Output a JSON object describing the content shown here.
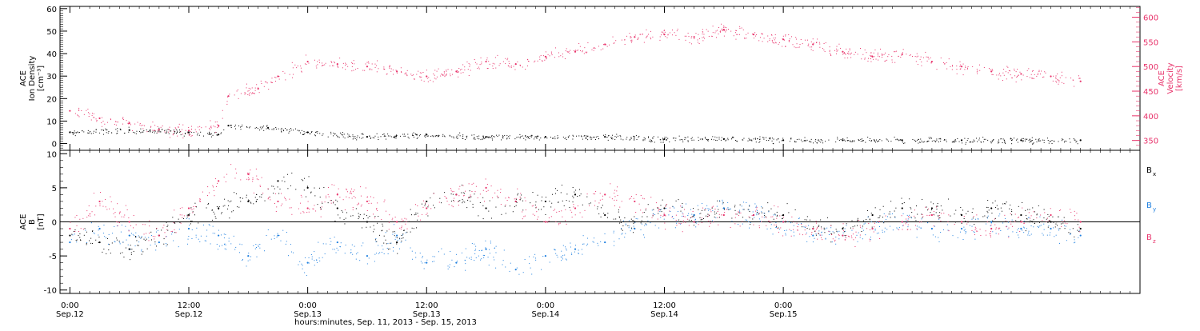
{
  "chart_data": [
    {
      "type": "scatter",
      "panel": "top",
      "left_axis": {
        "label_lines": [
          "ACE",
          "Ion Density",
          "[cm⁻³]"
        ],
        "ylim": [
          -3,
          61
        ],
        "ticks": [
          0,
          10,
          20,
          30,
          40,
          50,
          60
        ],
        "color": "#000000"
      },
      "right_axis": {
        "label_lines": [
          "ACE",
          "Velocity",
          "[km/s]"
        ],
        "ylim": [
          330,
          622
        ],
        "ticks": [
          350,
          400,
          450,
          500,
          550,
          600
        ],
        "color": "#e8336b"
      },
      "series": [
        {
          "axis": "left",
          "color": "#000000",
          "x": [
            0,
            6,
            12,
            15,
            16,
            20,
            24,
            30,
            36,
            42,
            48,
            54,
            60,
            66,
            72,
            78,
            84,
            90,
            96,
            102
          ],
          "y": [
            5,
            6,
            5,
            4,
            8,
            7,
            5,
            3,
            4,
            3,
            3,
            3,
            2,
            2,
            1.5,
            1.5,
            1.5,
            1.5,
            1.5,
            1.5
          ]
        },
        {
          "axis": "right",
          "color": "#e8336b",
          "x": [
            0,
            3,
            6,
            9,
            12,
            15,
            16,
            19,
            21,
            24,
            27,
            30,
            33,
            36,
            39,
            42,
            45,
            48,
            51,
            54,
            57,
            60,
            63,
            66,
            69,
            72,
            75,
            78,
            81,
            84,
            87,
            90,
            93,
            96,
            99,
            102
          ],
          "y": [
            410,
            395,
            385,
            372,
            370,
            380,
            440,
            455,
            480,
            510,
            505,
            500,
            490,
            480,
            490,
            510,
            505,
            520,
            530,
            545,
            560,
            565,
            560,
            575,
            565,
            555,
            545,
            530,
            520,
            525,
            510,
            500,
            490,
            485,
            480,
            470
          ]
        }
      ]
    },
    {
      "type": "scatter",
      "panel": "bottom",
      "left_axis": {
        "label_lines": [
          "ACE",
          "B",
          "[nT]"
        ],
        "ylim": [
          -10.5,
          10.5
        ],
        "ticks": [
          -10,
          -5,
          0,
          5,
          10
        ],
        "color": "#000000"
      },
      "series": [
        {
          "name": "Bx",
          "color": "#000000",
          "x": [
            0,
            3,
            6,
            9,
            12,
            15,
            18,
            21,
            24,
            27,
            30,
            33,
            36,
            39,
            42,
            45,
            48,
            51,
            54,
            57,
            60,
            63,
            66,
            69,
            72,
            75,
            78,
            81,
            84,
            87,
            90,
            93,
            96,
            99,
            102
          ],
          "y": [
            -2,
            -3,
            -4,
            -2,
            1,
            2,
            3,
            6,
            5,
            2,
            0,
            -3,
            3,
            4,
            2,
            3,
            3,
            4,
            1,
            0,
            2,
            1,
            2,
            1,
            1,
            -1,
            -1,
            1,
            2,
            2,
            1,
            2,
            1,
            0,
            -1
          ]
        },
        {
          "name": "By",
          "color": "#1f80e0",
          "x": [
            0,
            3,
            6,
            9,
            12,
            15,
            18,
            21,
            24,
            27,
            30,
            33,
            36,
            39,
            42,
            45,
            48,
            51,
            54,
            57,
            60,
            63,
            66,
            69,
            72,
            75,
            78,
            81,
            84,
            87,
            90,
            93,
            96,
            99,
            102
          ],
          "y": [
            -3,
            -1,
            -2,
            -3,
            -1,
            -2,
            -5,
            -2,
            -6,
            -3,
            -5,
            -2,
            -6,
            -6,
            -4,
            -7,
            -5,
            -4,
            -3,
            -1,
            1,
            1,
            2,
            1,
            0,
            -2,
            -2,
            -1,
            0,
            -1,
            -1,
            0,
            -1,
            -1,
            -2
          ]
        },
        {
          "name": "Bz",
          "color": "#e8336b",
          "x": [
            0,
            3,
            6,
            9,
            12,
            15,
            18,
            21,
            24,
            27,
            30,
            33,
            36,
            39,
            42,
            45,
            48,
            51,
            54,
            57,
            60,
            63,
            66,
            69,
            72,
            75,
            78,
            81,
            84,
            87,
            90,
            93,
            96,
            99,
            102
          ],
          "y": [
            -1,
            3,
            0,
            -2,
            2,
            6,
            7,
            3,
            2,
            4,
            3,
            0,
            2,
            4,
            5,
            3,
            0,
            2,
            4,
            3,
            1,
            0,
            1,
            1,
            0,
            -1,
            -2,
            -1,
            0,
            1,
            0,
            -1,
            0,
            1,
            0
          ]
        }
      ]
    }
  ],
  "legend": {
    "items": [
      "B",
      "B",
      "B"
    ],
    "subscripts": [
      "x",
      "y",
      "z"
    ],
    "colors": [
      "#000000",
      "#1f80e0",
      "#e8336b"
    ]
  },
  "x_axis": {
    "xlim": [
      -1,
      108
    ],
    "ticks": [
      {
        "x": 0,
        "line1": "0:00",
        "line2": "Sep.12"
      },
      {
        "x": 12,
        "line1": "12:00",
        "line2": "Sep.12"
      },
      {
        "x": 24,
        "line1": "0:00",
        "line2": "Sep.13"
      },
      {
        "x": 36,
        "line1": "12:00",
        "line2": "Sep.13"
      },
      {
        "x": 48,
        "line1": "0:00",
        "line2": "Sep.14"
      },
      {
        "x": 60,
        "line1": "12:00",
        "line2": "Sep.14"
      },
      {
        "x": 72,
        "line1": "0:00",
        "line2": "Sep.15"
      }
    ],
    "label": "hours:minutes, Sep. 11, 2013 - Sep. 15, 2013"
  }
}
